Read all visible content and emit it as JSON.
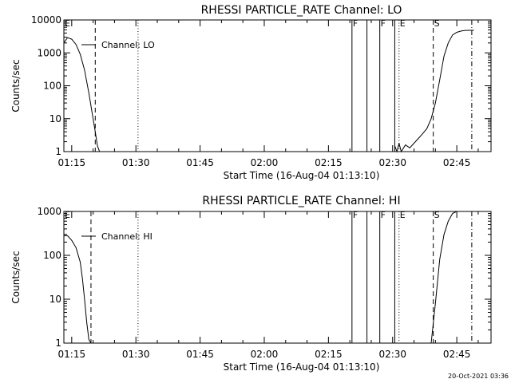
{
  "chart_data": [
    {
      "type": "line",
      "title": "RHESSI PARTICLE_RATE Channel: LO",
      "xlabel": "Start Time (16-Aug-04 01:13:10)",
      "ylabel": "Counts/sec",
      "y_scale": "log",
      "ylim": [
        1,
        10000
      ],
      "y_ticks": [
        "1",
        "10",
        "100",
        "1000",
        "10000"
      ],
      "xlim": [
        "01:13:10",
        "02:53:00"
      ],
      "x_ticks": [
        "01:15",
        "01:30",
        "01:45",
        "02:00",
        "02:15",
        "02:30",
        "02:45"
      ],
      "legend": {
        "label": "Channel: LO",
        "placement": "top-left"
      },
      "series": [
        {
          "x": [
            "01:13:10",
            "01:14",
            "01:15",
            "01:16",
            "01:17",
            "01:18",
            "01:19",
            "01:20",
            "01:20:30",
            "01:21",
            "01:21:30",
            "01:22"
          ],
          "y": [
            2000,
            2900,
            2600,
            1800,
            900,
            300,
            60,
            10,
            4,
            1.5,
            1,
            1
          ]
        },
        {
          "x": [
            "02:30:30",
            "02:31",
            "02:31:30",
            "02:32",
            "02:33",
            "02:34",
            "02:35",
            "02:36",
            "02:37",
            "02:38",
            "02:39",
            "02:40",
            "02:41",
            "02:42",
            "02:43",
            "02:44",
            "02:45",
            "02:46",
            "02:47",
            "02:48",
            "02:49"
          ],
          "y": [
            1.5,
            1,
            1.8,
            1,
            1.6,
            1.3,
            1.8,
            2.5,
            3.5,
            5,
            10,
            30,
            150,
            800,
            2000,
            3500,
            4200,
            4600,
            4800,
            4850,
            4850
          ]
        }
      ],
      "markers": [
        {
          "label": "E",
          "time": "01:13:10",
          "style": "solid"
        },
        {
          "label": "",
          "time": "01:20:30",
          "style": "dashed"
        },
        {
          "label": "",
          "time": "01:30:30",
          "style": "dotted"
        },
        {
          "label": "F",
          "time": "02:20:30",
          "style": "solid"
        },
        {
          "label": "",
          "time": "02:24",
          "style": "solid"
        },
        {
          "label": "F",
          "time": "02:27",
          "style": "solid"
        },
        {
          "label": "",
          "time": "02:30:30",
          "style": "solid"
        },
        {
          "label": "E",
          "time": "02:31:30",
          "style": "dotted"
        },
        {
          "label": "S",
          "time": "02:39:30",
          "style": "dashed"
        },
        {
          "label": "",
          "time": "02:48:30",
          "style": "dashdot"
        }
      ]
    },
    {
      "type": "line",
      "title": "RHESSI PARTICLE_RATE Channel: HI",
      "xlabel": "Start Time (16-Aug-04 01:13:10)",
      "ylabel": "Counts/sec",
      "y_scale": "log",
      "ylim": [
        1,
        1000
      ],
      "y_ticks": [
        "1",
        "10",
        "100",
        "1000"
      ],
      "xlim": [
        "01:13:10",
        "02:53:00"
      ],
      "x_ticks": [
        "01:15",
        "01:30",
        "01:45",
        "02:00",
        "02:15",
        "02:30",
        "02:45"
      ],
      "legend": {
        "label": "Channel: HI",
        "placement": "top-left"
      },
      "series": [
        {
          "x": [
            "01:13:10",
            "01:14",
            "01:15",
            "01:16",
            "01:17",
            "01:17:30",
            "01:18",
            "01:18:30",
            "01:19",
            "01:19:30"
          ],
          "y": [
            280,
            280,
            220,
            150,
            70,
            30,
            10,
            3,
            1.2,
            1
          ]
        },
        {
          "x": [
            "02:39",
            "02:40",
            "02:41",
            "02:42",
            "02:43",
            "02:44",
            "02:45",
            "02:46",
            "02:47"
          ],
          "y": [
            1,
            8,
            80,
            300,
            600,
            900,
            1000,
            1000,
            1000
          ]
        }
      ],
      "markers": [
        {
          "label": "E",
          "time": "01:13:10",
          "style": "solid"
        },
        {
          "label": "",
          "time": "01:19:30",
          "style": "dashed"
        },
        {
          "label": "",
          "time": "01:30:30",
          "style": "dotted"
        },
        {
          "label": "F",
          "time": "02:20:30",
          "style": "solid"
        },
        {
          "label": "",
          "time": "02:24",
          "style": "solid"
        },
        {
          "label": "F",
          "time": "02:27",
          "style": "solid"
        },
        {
          "label": "",
          "time": "02:30:30",
          "style": "solid"
        },
        {
          "label": "E",
          "time": "02:31:30",
          "style": "dotted"
        },
        {
          "label": "S",
          "time": "02:39:30",
          "style": "dashed"
        },
        {
          "label": "",
          "time": "02:48:30",
          "style": "dashdot"
        }
      ]
    }
  ],
  "timestamp": "20-Oct-2021 03:36"
}
